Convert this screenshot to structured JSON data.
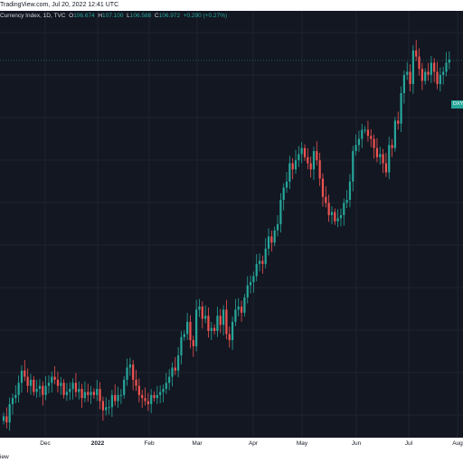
{
  "header": {
    "source_text": "TradingView.com, Jul 20, 2022 12:41 UTC"
  },
  "legend": {
    "title": "Currency Index, 1D, TVC",
    "open_label": "O",
    "open": "106.674",
    "high_label": "H",
    "high": "107.100",
    "low_label": "L",
    "low": "106.588",
    "close_label": "C",
    "close": "106.972",
    "change": "+0.290 (+0.27%)"
  },
  "price_tag": "DXY",
  "footer": {
    "brand_text": "iew"
  },
  "colors": {
    "up": "#26a69a",
    "down": "#ef5350",
    "background": "#131722",
    "grid": "#1f2330"
  },
  "chart_data": {
    "type": "candlestick",
    "symbol": "DXY",
    "x_ticks": [
      {
        "label": "Dec",
        "bold": false
      },
      {
        "label": "2022",
        "bold": true
      },
      {
        "label": "Feb",
        "bold": false
      },
      {
        "label": "Mar",
        "bold": false
      },
      {
        "label": "Apr",
        "bold": false
      },
      {
        "label": "May",
        "bold": false
      },
      {
        "label": "Jun",
        "bold": false
      },
      {
        "label": "Jul",
        "bold": false
      },
      {
        "label": "Aug",
        "bold": false
      }
    ],
    "last_close": 106.972,
    "closes": [
      95.3,
      95.1,
      95.7,
      95.9,
      96.0,
      96.4,
      96.8,
      96.6,
      96.3,
      96.5,
      96.1,
      96.2,
      96.3,
      96.0,
      96.3,
      96.4,
      96.6,
      96.5,
      96.3,
      96.4,
      96.0,
      96.1,
      96.2,
      96.4,
      96.1,
      96.2,
      95.9,
      96.1,
      96.0,
      96.1,
      96.0,
      96.2,
      95.8,
      95.5,
      95.6,
      95.6,
      96.0,
      95.8,
      96.0,
      96.0,
      96.5,
      96.9,
      97.0,
      96.5,
      96.3,
      96.0,
      95.9,
      95.8,
      95.7,
      96.0,
      95.9,
      96.0,
      96.1,
      96.2,
      96.4,
      96.6,
      96.9,
      96.8,
      97.3,
      97.9,
      98.0,
      98.4,
      97.8,
      97.6,
      98.8,
      98.9,
      98.5,
      98.6,
      98.1,
      98.2,
      98.1,
      98.6,
      98.3,
      98.8,
      98.0,
      97.8,
      98.4,
      98.8,
      98.9,
      98.7,
      99.2,
      99.6,
      99.7,
      99.9,
      100.3,
      100.4,
      100.3,
      100.8,
      101.2,
      101.0,
      101.4,
      101.6,
      102.4,
      102.8,
      103.0,
      103.6,
      103.4,
      103.7,
      103.9,
      104.1,
      103.8,
      103.6,
      103.4,
      104.0,
      103.7,
      103.1,
      102.5,
      102.3,
      101.9,
      102.0,
      101.7,
      101.8,
      101.9,
      102.3,
      102.4,
      103.0,
      104.0,
      104.2,
      104.4,
      104.7,
      104.7,
      104.5,
      104.4,
      104.1,
      103.8,
      103.9,
      103.6,
      103.3,
      104.2,
      104.1,
      105.0,
      104.9,
      105.9,
      106.5,
      106.6,
      106.2,
      107.3,
      107.1,
      106.7,
      106.3,
      106.6,
      106.5,
      106.9,
      106.6,
      106.2,
      106.5,
      106.6,
      106.9,
      107.0
    ]
  }
}
